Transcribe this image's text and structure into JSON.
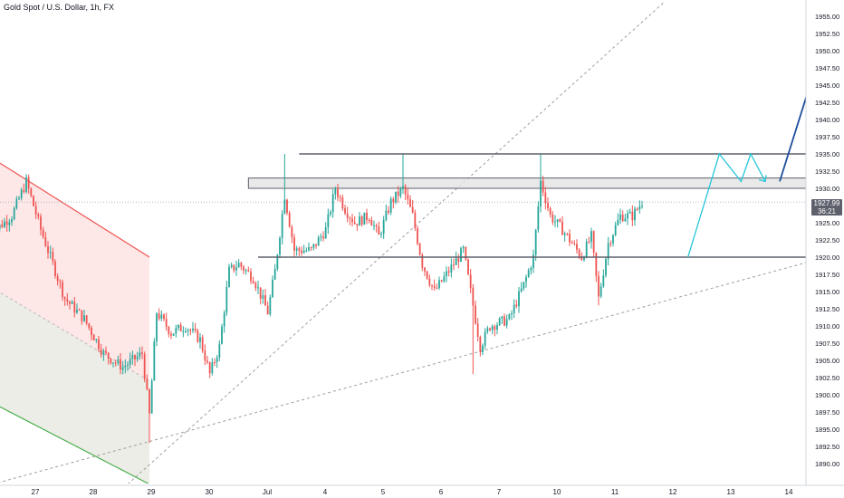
{
  "symbol": {
    "title": "Gold Spot / U.S. Dollar, 1h, FX"
  },
  "price_tag": {
    "price": "1927.99",
    "countdown": "36:21"
  },
  "colors": {
    "up": "#26a69a",
    "down": "#ef5350",
    "channel_upper": "#ef5350",
    "channel_lower": "#4caf50",
    "zone": "#e3e3e3",
    "projection": "#26c6da",
    "target_arrow": "#1e4e9c",
    "level": "#5d606b",
    "trend": "#9e9e9e",
    "price_line": "#b2b5be"
  },
  "chart_data": {
    "type": "candlestick",
    "title": "",
    "ylim": [
      1887.0,
      1957.0
    ],
    "price_ticks": [
      "1890.00",
      "1892.50",
      "1895.00",
      "1897.50",
      "1900.00",
      "1902.50",
      "1905.00",
      "1907.50",
      "1910.00",
      "1912.50",
      "1915.00",
      "1917.50",
      "1920.00",
      "1922.50",
      "1925.00",
      "1927.50",
      "1930.00",
      "1932.50",
      "1935.00",
      "1937.50",
      "1940.00",
      "1942.50",
      "1945.00",
      "1947.50",
      "1950.00",
      "1952.50",
      "1955.00"
    ],
    "date_ticks": [
      {
        "label": "27",
        "t": 0
      },
      {
        "label": "28",
        "t": 24
      },
      {
        "label": "29",
        "t": 48
      },
      {
        "label": "30",
        "t": 72
      },
      {
        "label": "Jul",
        "t": 96
      },
      {
        "label": "4",
        "t": 120
      },
      {
        "label": "5",
        "t": 144
      },
      {
        "label": "6",
        "t": 168
      },
      {
        "label": "7",
        "t": 192
      },
      {
        "label": "10",
        "t": 216
      },
      {
        "label": "11",
        "t": 240
      },
      {
        "label": "12",
        "t": 264
      },
      {
        "label": "13",
        "t": 288
      },
      {
        "label": "14",
        "t": 312
      }
    ],
    "current_price": 1927.99,
    "key_points": [
      {
        "t": -10,
        "price": 1923
      },
      {
        "t": 0,
        "price": 1926
      },
      {
        "t": 6,
        "price": 1931
      },
      {
        "t": 12,
        "price": 1924
      },
      {
        "t": 22,
        "price": 1914
      },
      {
        "t": 30,
        "price": 1911
      },
      {
        "t": 38,
        "price": 1906
      },
      {
        "t": 46,
        "price": 1904
      },
      {
        "t": 54,
        "price": 1906
      },
      {
        "t": 57,
        "price": 1897
      },
      {
        "t": 60,
        "price": 1912
      },
      {
        "t": 66,
        "price": 1909
      },
      {
        "t": 72,
        "price": 1910
      },
      {
        "t": 78,
        "price": 1908
      },
      {
        "t": 82,
        "price": 1903
      },
      {
        "t": 86,
        "price": 1907
      },
      {
        "t": 90,
        "price": 1918
      },
      {
        "t": 94,
        "price": 1919
      },
      {
        "t": 100,
        "price": 1917
      },
      {
        "t": 106,
        "price": 1912
      },
      {
        "t": 109,
        "price": 1918
      },
      {
        "t": 113,
        "price": 1929
      },
      {
        "t": 117,
        "price": 1921
      },
      {
        "t": 124,
        "price": 1921
      },
      {
        "t": 130,
        "price": 1924
      },
      {
        "t": 134,
        "price": 1930
      },
      {
        "t": 138,
        "price": 1927
      },
      {
        "t": 142,
        "price": 1925
      },
      {
        "t": 148,
        "price": 1926
      },
      {
        "t": 152,
        "price": 1923
      },
      {
        "t": 157,
        "price": 1928
      },
      {
        "t": 162,
        "price": 1930
      },
      {
        "t": 166,
        "price": 1926
      },
      {
        "t": 170,
        "price": 1919
      },
      {
        "t": 175,
        "price": 1915
      },
      {
        "t": 181,
        "price": 1918
      },
      {
        "t": 187,
        "price": 1921
      },
      {
        "t": 191,
        "price": 1913
      },
      {
        "t": 194,
        "price": 1907
      },
      {
        "t": 198,
        "price": 1910
      },
      {
        "t": 206,
        "price": 1911
      },
      {
        "t": 212,
        "price": 1916
      },
      {
        "t": 216,
        "price": 1920
      },
      {
        "t": 219,
        "price": 1931
      },
      {
        "t": 223,
        "price": 1926
      },
      {
        "t": 228,
        "price": 1924
      },
      {
        "t": 232,
        "price": 1922
      },
      {
        "t": 236,
        "price": 1920
      },
      {
        "t": 240,
        "price": 1923
      },
      {
        "t": 243,
        "price": 1914
      },
      {
        "t": 247,
        "price": 1922
      },
      {
        "t": 252,
        "price": 1926
      },
      {
        "t": 257,
        "price": 1926
      },
      {
        "t": 261,
        "price": 1928
      }
    ],
    "spikes": [
      {
        "t": 113,
        "high": 1935
      },
      {
        "t": 162,
        "high": 1935
      },
      {
        "t": 219,
        "high": 1935
      },
      {
        "t": 191,
        "low": 1903
      },
      {
        "t": 243,
        "low": 1913
      },
      {
        "t": 57,
        "low": 1893
      }
    ],
    "annotations": {
      "resistance_line": {
        "price": 1935,
        "t_start": 119,
        "t_end": 349
      },
      "zone": {
        "price_low": 1930,
        "price_high": 1931.5,
        "t_start": 98,
        "t_end": 346
      },
      "support_line": {
        "price": 1920,
        "t_start": 102,
        "t_end": 330
      },
      "channel_upper": {
        "p1": {
          "t": -20,
          "price": 1937
        },
        "p2": {
          "t": 57,
          "price": 1920
        }
      },
      "channel_mid": {
        "p1": {
          "t": -20,
          "price": 1918
        },
        "p2": {
          "t": 57,
          "price": 1902
        }
      },
      "channel_lower": {
        "p1": {
          "t": -20,
          "price": 1901
        },
        "p2": {
          "t": 57,
          "price": 1887
        }
      },
      "trendline_steep": {
        "p1": {
          "t": 48,
          "price": 1887
        },
        "p2": {
          "t": 270,
          "price": 1957
        }
      },
      "trendline_shallow": {
        "p1": {
          "t": -8,
          "price": 1887
        },
        "p2": {
          "t": 400,
          "price": 1926
        }
      },
      "projection_path": [
        {
          "t": 280,
          "price": 1920
        },
        {
          "t": 293,
          "price": 1935
        },
        {
          "t": 302,
          "price": 1931
        },
        {
          "t": 306,
          "price": 1935
        },
        {
          "t": 312,
          "price": 1931
        }
      ],
      "target_arrow": {
        "from": {
          "t": 318,
          "price": 1931
        },
        "to": {
          "t": 335,
          "price": 1950
        }
      }
    }
  }
}
